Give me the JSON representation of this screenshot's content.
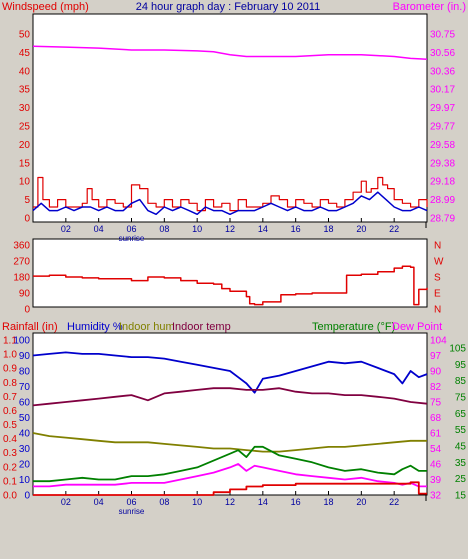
{
  "header": {
    "left_label": "Windspeed (mph)",
    "title": "24 hour graph day : February 10 2011",
    "right_label": "Barometer (in.)"
  },
  "bottom_header": {
    "rainfall": "Rainfall (in)",
    "humidity": "Humidity %",
    "indoor_hum": "Indoor hum",
    "indoor_temp": "Indoor temp",
    "temperature": "Temperature (°F)",
    "dew_point": "Dew Point"
  },
  "colors": {
    "background": "#d4d0c8",
    "plot_bg": "#ffffff",
    "windspeed": "#e00000",
    "wind_avg": "#0000cc",
    "barometer": "#ff00ff",
    "direction": "#e00000",
    "humidity": "#0000cc",
    "indoor_hum": "#808000",
    "indoor_temp": "#800040",
    "temperature": "#008000",
    "dew_point": "#ff00ff",
    "rainfall": "#e00000"
  },
  "chart_data": [
    {
      "type": "line",
      "name": "wind-barometer",
      "x_ticks": [
        "02",
        "04",
        "06",
        "08",
        "10",
        "12",
        "14",
        "16",
        "18",
        "20",
        "22"
      ],
      "x_annotation": "sunrise",
      "y_left_ticks": [
        "50",
        "45",
        "40",
        "35",
        "30",
        "25",
        "20",
        "15",
        "10",
        "5",
        "0"
      ],
      "y_right_ticks": [
        "30.75",
        "30.56",
        "30.36",
        "30.17",
        "29.97",
        "29.77",
        "29.58",
        "29.38",
        "29.18",
        "28.99",
        "28.79"
      ],
      "ylim_left": [
        0,
        50
      ],
      "ylim_right": [
        28.79,
        30.75
      ],
      "x_range": [
        0,
        24
      ],
      "series": [
        {
          "name": "Windspeed (mph)",
          "axis": "left",
          "x": [
            0,
            0.3,
            0.6,
            1,
            1.5,
            2,
            2.5,
            3,
            3.3,
            3.6,
            4,
            4.5,
            5,
            5.5,
            6,
            6.5,
            7,
            7.5,
            8,
            8.5,
            9,
            9.5,
            10,
            10.5,
            11,
            11.5,
            12,
            12.5,
            13,
            13.5,
            14,
            14.5,
            15,
            15.5,
            16,
            16.5,
            17,
            17.5,
            18,
            18.5,
            19,
            19.5,
            20,
            20.3,
            20.6,
            21,
            21.3,
            21.6,
            22,
            22.5,
            23,
            23.5,
            24
          ],
          "values": [
            3,
            11,
            5,
            3,
            5,
            3,
            3,
            4,
            8,
            5,
            3,
            5,
            4,
            3,
            9,
            8,
            4,
            3,
            5,
            3,
            5,
            4,
            2,
            5,
            3,
            4,
            2,
            5,
            3,
            3,
            4,
            6,
            5,
            3,
            5,
            4,
            3,
            5,
            4,
            3,
            5,
            7,
            10,
            7,
            8,
            11,
            9,
            8,
            5,
            4,
            3,
            5,
            3
          ]
        },
        {
          "name": "Wind avg",
          "axis": "left",
          "x": [
            0,
            0.5,
            1,
            1.5,
            2,
            2.5,
            3,
            3.5,
            4,
            4.5,
            5,
            5.5,
            6,
            6.5,
            7,
            7.5,
            8,
            8.5,
            9,
            9.5,
            10,
            10.5,
            11,
            11.5,
            12,
            12.5,
            13,
            13.5,
            14,
            14.5,
            15,
            15.5,
            16,
            16.5,
            17,
            17.5,
            18,
            18.5,
            19,
            19.5,
            20,
            20.5,
            21,
            21.5,
            22,
            22.5,
            23,
            23.5,
            24
          ],
          "values": [
            2,
            4,
            2,
            2,
            3,
            2,
            3,
            3,
            2,
            3,
            2,
            2,
            4,
            5,
            2,
            1,
            3,
            2,
            3,
            2,
            1,
            3,
            2,
            2,
            1,
            2,
            2,
            2,
            3,
            4,
            3,
            2,
            3,
            2,
            2,
            3,
            2,
            2,
            3,
            4,
            6,
            5,
            7,
            5,
            3,
            2,
            2,
            3,
            2
          ]
        },
        {
          "name": "Barometer (in.)",
          "axis": "right",
          "x": [
            0,
            2,
            4,
            6,
            8,
            10,
            11,
            12,
            13,
            14,
            15,
            16,
            17,
            18,
            19,
            20,
            21,
            22,
            23,
            24
          ],
          "values": [
            30.62,
            30.61,
            30.6,
            30.58,
            30.58,
            30.57,
            30.56,
            30.53,
            30.51,
            30.51,
            30.51,
            30.51,
            30.52,
            30.53,
            30.53,
            30.53,
            30.52,
            30.51,
            30.49,
            30.48
          ]
        }
      ]
    },
    {
      "type": "line",
      "name": "wind-direction",
      "y_left_ticks": [
        "360",
        "270",
        "180",
        "90",
        "0"
      ],
      "y_right_ticks": [
        "N",
        "W",
        "S",
        "E",
        "N"
      ],
      "ylim": [
        0,
        360
      ],
      "x_range": [
        0,
        24
      ],
      "series": [
        {
          "name": "Wind direction",
          "x": [
            0,
            1,
            2,
            3,
            4,
            5,
            6,
            7,
            8,
            9,
            10,
            11,
            11.5,
            12,
            12.5,
            13,
            13.2,
            13.5,
            14,
            15,
            15.1,
            16,
            17,
            18,
            19,
            19.1,
            20,
            21,
            22,
            22.5,
            23,
            23.2,
            23.5,
            24
          ],
          "values": [
            185,
            190,
            180,
            175,
            170,
            170,
            160,
            180,
            175,
            160,
            145,
            140,
            115,
            100,
            100,
            70,
            30,
            25,
            40,
            40,
            80,
            85,
            90,
            90,
            90,
            190,
            195,
            210,
            230,
            240,
            235,
            25,
            110,
            120
          ]
        }
      ]
    },
    {
      "type": "line",
      "name": "humidity-temperature",
      "y_left_ticks_rain": [
        "1.1",
        "1.0",
        "0.9",
        "0.8",
        "0.7",
        "0.6",
        "0.5",
        "0.4",
        "0.3",
        "0.2",
        "0.1",
        "0.0"
      ],
      "y_left_ticks_humidity": [
        "100",
        "90",
        "80",
        "70",
        "60",
        "50",
        "40",
        "30",
        "20",
        "10",
        "0"
      ],
      "y_right_ticks_temp": [
        "105",
        "95",
        "85",
        "75",
        "65",
        "55",
        "45",
        "35",
        "25",
        "15"
      ],
      "y_right_ticks_dew": [
        "104",
        "97",
        "90",
        "82",
        "75",
        "68",
        "61",
        "54",
        "46",
        "39",
        "32"
      ],
      "ylim_humidity": [
        0,
        100
      ],
      "ylim_temp": [
        15,
        105
      ],
      "ylim_rain": [
        0,
        1.1
      ],
      "x_range": [
        0,
        24
      ],
      "series": [
        {
          "name": "Humidity %",
          "axis": "humidity",
          "x": [
            0,
            1,
            2,
            3,
            4,
            5,
            6,
            7,
            8,
            9,
            10,
            11,
            12,
            12.5,
            13,
            13.5,
            14,
            15,
            16,
            17,
            18,
            19,
            20,
            21,
            22,
            22.5,
            23,
            23.5,
            24
          ],
          "values": [
            90,
            91,
            92,
            91,
            91,
            90,
            89,
            89,
            88,
            86,
            84,
            82,
            80,
            76,
            72,
            66,
            75,
            77,
            80,
            83,
            86,
            85,
            86,
            82,
            78,
            72,
            80,
            76,
            78
          ]
        },
        {
          "name": "Indoor hum",
          "axis": "humidity",
          "x": [
            0,
            1,
            2,
            3,
            4,
            5,
            6,
            7,
            8,
            9,
            10,
            11,
            12,
            13,
            14,
            15,
            16,
            17,
            18,
            19,
            20,
            21,
            22,
            23,
            24
          ],
          "values": [
            40,
            38,
            37,
            36,
            35,
            34,
            34,
            34,
            33,
            32,
            31,
            30,
            30,
            29,
            28,
            28,
            29,
            30,
            31,
            31,
            32,
            33,
            34,
            35,
            35
          ]
        },
        {
          "name": "Indoor temp",
          "axis": "temp",
          "x": [
            0,
            1,
            2,
            3,
            4,
            5,
            6,
            7,
            8,
            9,
            10,
            11,
            12,
            13,
            14,
            15,
            16,
            17,
            18,
            19,
            20,
            21,
            22,
            23,
            24
          ],
          "values": [
            67,
            68,
            69,
            70,
            71,
            72,
            73,
            70,
            74,
            75,
            76,
            77,
            77,
            76,
            76,
            77,
            75,
            74,
            74,
            73,
            73,
            72,
            71,
            69,
            68
          ]
        },
        {
          "name": "Temperature (°F)",
          "axis": "temp",
          "x": [
            0,
            1,
            2,
            3,
            4,
            5,
            6,
            7,
            8,
            9,
            10,
            11,
            12,
            12.5,
            13,
            13.5,
            14,
            15,
            16,
            17,
            18,
            19,
            20,
            21,
            22,
            22.5,
            23,
            23.5,
            24
          ],
          "values": [
            23,
            23,
            24,
            25,
            24,
            24,
            26,
            26,
            27,
            29,
            31,
            35,
            39,
            41,
            37,
            43,
            43,
            38,
            36,
            34,
            31,
            29,
            30,
            28,
            27,
            30,
            32,
            29,
            29
          ]
        },
        {
          "name": "Dew Point",
          "axis": "temp",
          "x": [
            0,
            1,
            2,
            3,
            4,
            5,
            6,
            7,
            8,
            9,
            10,
            11,
            12,
            12.5,
            13,
            13.5,
            14,
            15,
            16,
            17,
            18,
            19,
            20,
            21,
            22,
            22.5,
            23,
            23.5,
            24
          ],
          "values": [
            20,
            20,
            21,
            21,
            21,
            21,
            22,
            22,
            22,
            24,
            26,
            28,
            31,
            33,
            29,
            32,
            31,
            29,
            27,
            26,
            25,
            24,
            25,
            23,
            22,
            21,
            22,
            20,
            20
          ]
        },
        {
          "name": "Rainfall (in)",
          "axis": "rain",
          "x": [
            0,
            2,
            4,
            6,
            8,
            9,
            10,
            11,
            12,
            13,
            14,
            15,
            16,
            17,
            18,
            19,
            20,
            21,
            22,
            23,
            23.4,
            23.5,
            24
          ],
          "values": [
            0.0,
            0.0,
            0.0,
            0.0,
            0.0,
            0.0,
            0.0,
            0.02,
            0.04,
            0.06,
            0.07,
            0.07,
            0.08,
            0.08,
            0.08,
            0.08,
            0.08,
            0.08,
            0.08,
            0.09,
            0.09,
            0.01,
            0.01
          ]
        }
      ]
    }
  ]
}
